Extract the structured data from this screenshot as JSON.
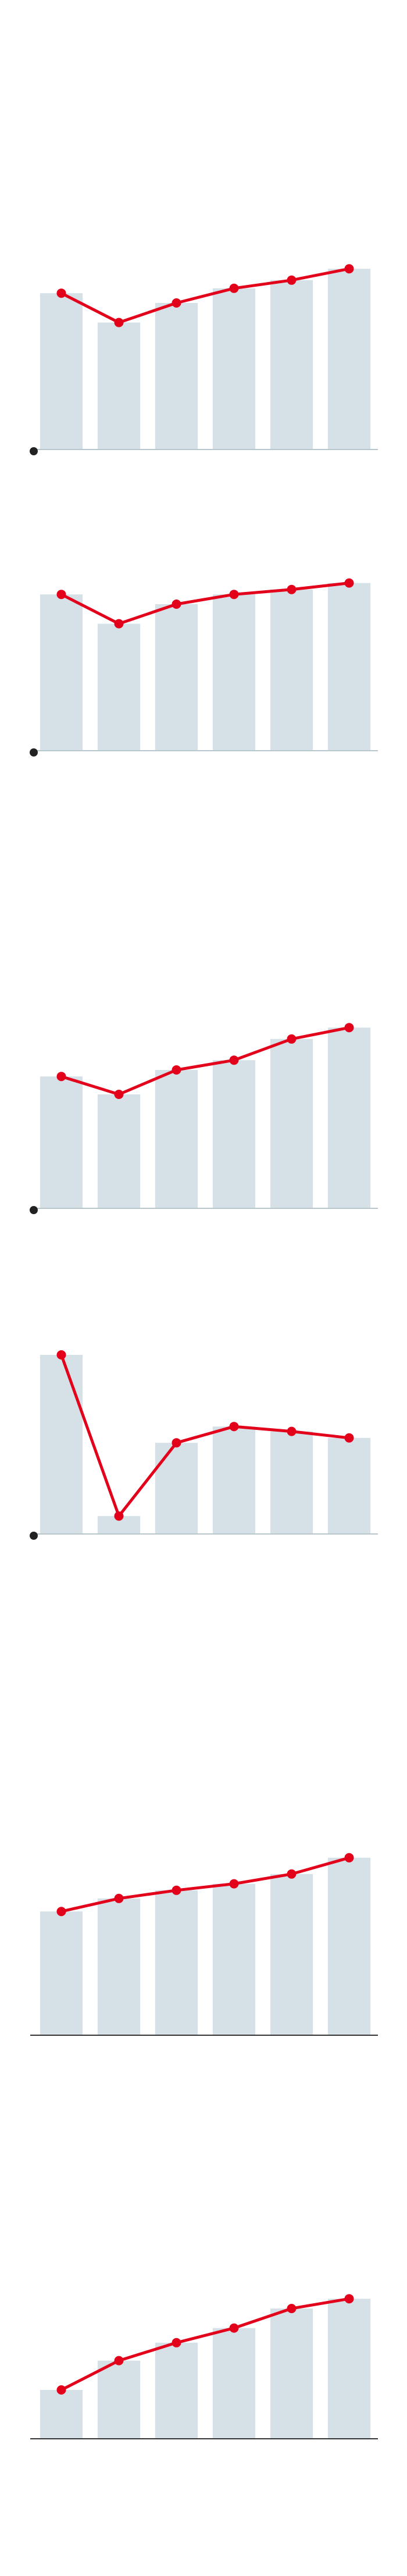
{
  "chart_data": [
    {
      "type": "bar-line",
      "bar_color": "#d5e1e7",
      "line_color": "#e3001b",
      "axis_color": "#b8c6cd",
      "origin_marker": true,
      "ylim": [
        0,
        120
      ],
      "values": [
        96,
        78,
        90,
        99,
        104,
        111
      ]
    },
    {
      "type": "bar-line",
      "bar_color": "#d5e1e7",
      "line_color": "#e3001b",
      "axis_color": "#b8c6cd",
      "origin_marker": true,
      "ylim": [
        0,
        120
      ],
      "values": [
        96,
        78,
        90,
        96,
        99,
        103
      ]
    },
    {
      "type": "bar-line",
      "bar_color": "#d5e1e7",
      "line_color": "#e3001b",
      "axis_color": "#b8c6cd",
      "origin_marker": true,
      "ylim": [
        0,
        120
      ],
      "values": [
        81,
        70,
        85,
        91,
        104,
        111
      ]
    },
    {
      "type": "bar-line",
      "bar_color": "#d5e1e7",
      "line_color": "#e3001b",
      "axis_color": "#b8c6cd",
      "origin_marker": true,
      "ylim": [
        0,
        120
      ],
      "values": [
        110,
        11,
        56,
        66,
        63,
        59
      ]
    },
    {
      "type": "bar-line",
      "bar_color": "#d5e1e7",
      "line_color": "#e3001b",
      "axis_color": "#333333",
      "origin_marker": false,
      "ylim": [
        0,
        120
      ],
      "values": [
        76,
        84,
        89,
        93,
        99,
        109
      ]
    },
    {
      "type": "bar-line",
      "bar_color": "#d5e1e7",
      "line_color": "#e3001b",
      "axis_color": "#333333",
      "origin_marker": false,
      "ylim": [
        0,
        120
      ],
      "values": [
        30,
        48,
        59,
        68,
        80,
        86
      ]
    }
  ]
}
